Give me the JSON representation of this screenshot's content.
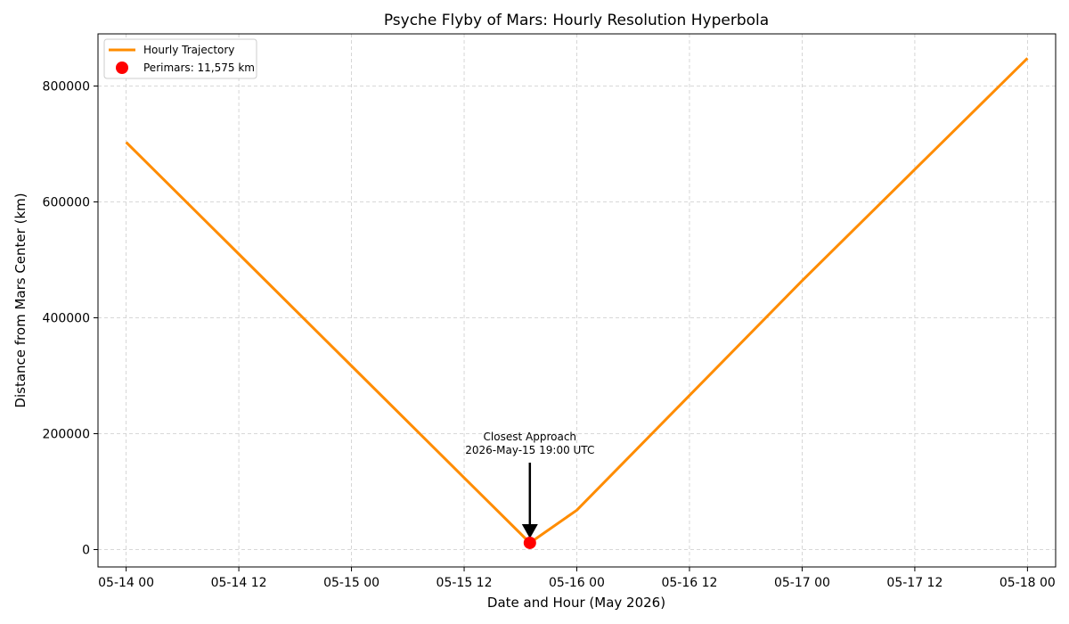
{
  "chart_data": {
    "type": "line",
    "title": "Psyche Flyby of Mars: Hourly Resolution Hyperbola",
    "xlabel": "Date and Hour (May 2026)",
    "ylabel": "Distance from Mars Center (km)",
    "x_range": [
      "2026-05-13T21:00",
      "2026-05-18T03:00"
    ],
    "ylim": [
      -30000,
      890000
    ],
    "grid": true,
    "legend_position": "top-left",
    "x_ticks": [
      {
        "value": "2026-05-14T00:00",
        "label": "05-14 00"
      },
      {
        "value": "2026-05-14T12:00",
        "label": "05-14 12"
      },
      {
        "value": "2026-05-15T00:00",
        "label": "05-15 00"
      },
      {
        "value": "2026-05-15T12:00",
        "label": "05-15 12"
      },
      {
        "value": "2026-05-16T00:00",
        "label": "05-16 00"
      },
      {
        "value": "2026-05-16T12:00",
        "label": "05-16 12"
      },
      {
        "value": "2026-05-17T00:00",
        "label": "05-17 00"
      },
      {
        "value": "2026-05-17T12:00",
        "label": "05-17 12"
      },
      {
        "value": "2026-05-18T00:00",
        "label": "05-18 00"
      }
    ],
    "y_ticks": [
      {
        "value": 0,
        "label": "0"
      },
      {
        "value": 200000,
        "label": "200000"
      },
      {
        "value": 400000,
        "label": "400000"
      },
      {
        "value": 600000,
        "label": "600000"
      },
      {
        "value": 800000,
        "label": "800000"
      }
    ],
    "series": [
      {
        "name": "Hourly Trajectory",
        "color": "#ff8c00",
        "points": [
          {
            "x": "2026-05-14T00:00",
            "y": 703000
          },
          {
            "x": "2026-05-14T12:00",
            "y": 510000
          },
          {
            "x": "2026-05-15T00:00",
            "y": 317000
          },
          {
            "x": "2026-05-15T12:00",
            "y": 124000
          },
          {
            "x": "2026-05-15T19:00",
            "y": 11575
          },
          {
            "x": "2026-05-16T00:00",
            "y": 68000
          },
          {
            "x": "2026-05-16T12:00",
            "y": 266000
          },
          {
            "x": "2026-05-17T00:00",
            "y": 464000
          },
          {
            "x": "2026-05-17T12:00",
            "y": 656000
          },
          {
            "x": "2026-05-18T00:00",
            "y": 848000
          }
        ]
      }
    ],
    "markers": [
      {
        "name": "Perimars: 11,575 km",
        "color": "#ff0000",
        "x": "2026-05-15T19:00",
        "y": 11575
      }
    ],
    "annotation": {
      "lines": [
        "Closest Approach",
        "2026-May-15 19:00 UTC"
      ],
      "x": "2026-05-15T19:00",
      "y": 11575,
      "text_y": 150000
    }
  }
}
